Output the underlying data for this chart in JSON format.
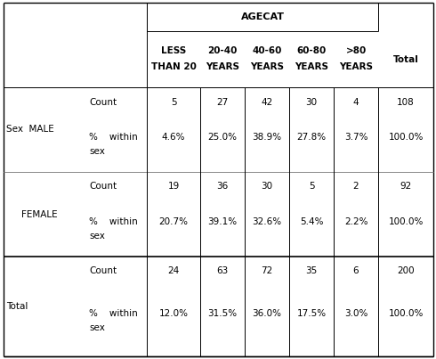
{
  "title": "AGECAT",
  "col_headers_line1": [
    "LESS",
    "20-40",
    "40-60",
    "60-80",
    ">80",
    ""
  ],
  "col_headers_line2": [
    "THAN 20",
    "YEARS",
    "YEARS",
    "YEARS",
    "YEARS",
    "Total"
  ],
  "male_count": [
    "5",
    "27",
    "42",
    "30",
    "4",
    "108"
  ],
  "male_pct": [
    "4.6%",
    "25.0%",
    "38.9%",
    "27.8%",
    "3.7%",
    "100.0%"
  ],
  "female_count": [
    "19",
    "36",
    "30",
    "5",
    "2",
    "92"
  ],
  "female_pct": [
    "20.7%",
    "39.1%",
    "32.6%",
    "5.4%",
    "2.2%",
    "100.0%"
  ],
  "total_count": [
    "24",
    "63",
    "72",
    "35",
    "6",
    "200"
  ],
  "total_pct": [
    "12.0%",
    "31.5%",
    "36.0%",
    "17.5%",
    "3.0%",
    "100.0%"
  ],
  "bg_color": "#ffffff",
  "font_size": 7.5
}
